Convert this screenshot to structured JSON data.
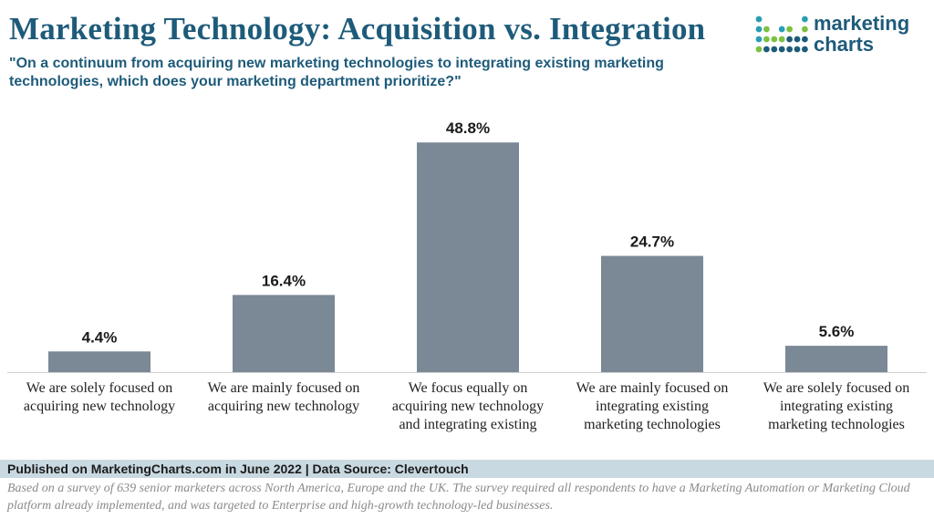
{
  "header": {
    "title": "Marketing Technology: Acquisition vs. Integration",
    "subtitle": "\"On a continuum from acquiring new marketing technologies to integrating existing marketing technologies, which does your marketing department prioritize?\""
  },
  "logo": {
    "line1": "marketing",
    "line2": "charts",
    "dot_colors": [
      "#2a9db5",
      "#7cc142",
      "#1e5b7a"
    ]
  },
  "chart_data": {
    "type": "bar",
    "title": "Marketing Technology: Acquisition vs. Integration",
    "categories": [
      "We are solely focused on\nacquiring new technology",
      "We are mainly focused on\nacquiring new technology",
      "We focus equally on\nacquiring new technology\nand integrating existing",
      "We are mainly focused on\nintegrating existing\nmarketing technologies",
      "We are solely focused on\nintegrating existing\nmarketing technologies"
    ],
    "values": [
      4.4,
      16.4,
      48.8,
      24.7,
      5.6
    ],
    "value_labels": [
      "4.4%",
      "16.4%",
      "48.8%",
      "24.7%",
      "5.6%"
    ],
    "ylim": [
      0,
      50
    ],
    "grid": false,
    "bar_color": "#7b8896"
  },
  "footer": {
    "published": "Published on MarketingCharts.com in June 2022 | Data Source: Clevertouch",
    "note": "Based on a survey of 639 senior marketers across North America, Europe and the UK. The survey required all respondents to have a Marketing Automation or Marketing Cloud platform already implemented, and was targeted to Enterprise and high-growth technology-led businesses."
  }
}
